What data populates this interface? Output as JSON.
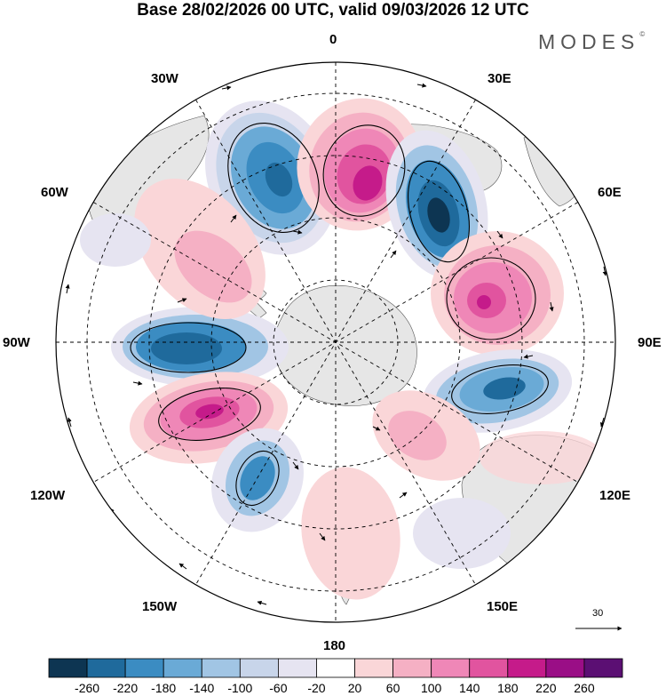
{
  "header": {
    "title": "Base 28/02/2026 00 UTC, valid 09/03/2026 12 UTC",
    "logo": "MODES",
    "logo_mark": "©"
  },
  "map": {
    "projection": "south-polar-stereographic",
    "longitude_labels": {
      "top": "0",
      "top_right": "30E",
      "upper_right": "60E",
      "right": "90E",
      "lower_right": "120E",
      "bottom_right": "150E",
      "bottom": "180",
      "bottom_left": "150W",
      "lower_left": "120W",
      "left": "90W",
      "upper_left": "60W",
      "top_left": "30W"
    },
    "reference_vector_label": "30",
    "colors": {
      "land": "#e6e6e6",
      "positive_strong": "#b4117f",
      "negative_strong": "#154a78"
    }
  },
  "colorbar": {
    "levels": [
      "-260",
      "-220",
      "-180",
      "-140",
      "-100",
      "-60",
      "-20",
      "20",
      "60",
      "100",
      "140",
      "180",
      "220",
      "260"
    ],
    "colors": [
      "#0d3552",
      "#1f6a9c",
      "#3b8cc2",
      "#6aaad6",
      "#a1c5e4",
      "#c8d5ea",
      "#e6e4f1",
      "#ffffff",
      "#fad6d8",
      "#f5b0c4",
      "#ef87b7",
      "#e1549f",
      "#c51b8a",
      "#9a0e86",
      "#5b0f73"
    ]
  }
}
